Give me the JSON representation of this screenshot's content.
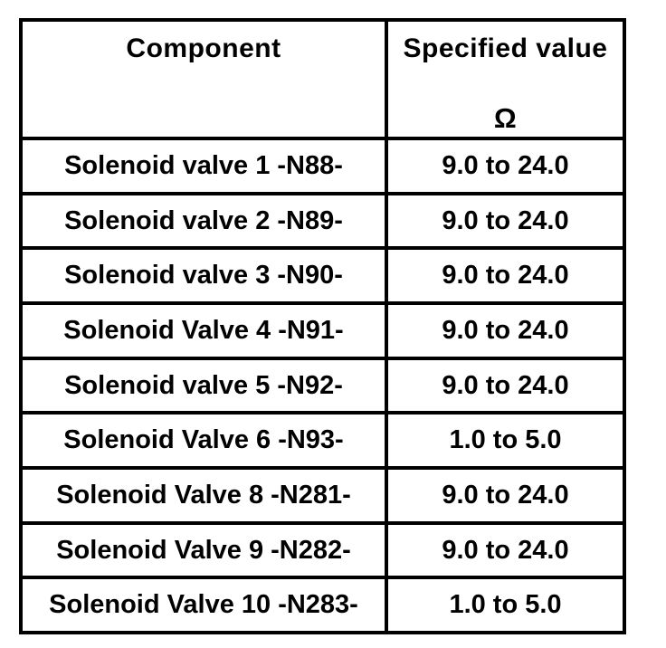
{
  "table": {
    "header": {
      "component_label": "Component",
      "value_label": "Specified value",
      "unit_symbol": "Ω"
    },
    "rows": [
      {
        "component": "Solenoid valve 1 -N88-",
        "value": "9.0 to 24.0"
      },
      {
        "component": "Solenoid valve 2 -N89-",
        "value": "9.0 to 24.0"
      },
      {
        "component": "Solenoid valve 3 -N90-",
        "value": "9.0 to 24.0"
      },
      {
        "component": "Solenoid Valve 4 -N91-",
        "value": "9.0 to 24.0"
      },
      {
        "component": "Solenoid valve 5 -N92-",
        "value": "9.0 to 24.0"
      },
      {
        "component": "Solenoid Valve 6 -N93-",
        "value": "1.0 to 5.0"
      },
      {
        "component": "Solenoid Valve 8 -N281-",
        "value": "9.0 to 24.0"
      },
      {
        "component": "Solenoid Valve 9 -N282-",
        "value": "9.0 to 24.0"
      },
      {
        "component": "Solenoid Valve 10 -N283-",
        "value": "1.0 to 5.0"
      }
    ],
    "colors": {
      "border": "#000000",
      "background": "#ffffff",
      "text": "#000000"
    }
  }
}
